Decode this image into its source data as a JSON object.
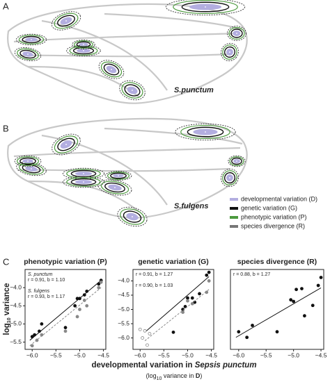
{
  "panels": {
    "a": "A",
    "b": "B",
    "c": "C"
  },
  "species": {
    "a": "S.punctum",
    "b": "S.fulgens"
  },
  "legend": [
    {
      "label": "developmental variation (D)",
      "color": "#b3aee0"
    },
    {
      "label": "genetic variation (G)",
      "color": "#111111"
    },
    {
      "label": "phenotypic variation (P)",
      "color": "#4c9a3e"
    },
    {
      "label": "species divergence (R)",
      "color": "#777777"
    }
  ],
  "y_label": [
    "log",
    "10",
    " variance"
  ],
  "x_label": [
    "developmental variation in ",
    "Sepsis punctum"
  ],
  "x_label_sub": [
    "(log",
    "10",
    " variance in ",
    "D",
    ")"
  ],
  "chart_data": [
    {
      "type": "scatter",
      "title": "phenotypic variation (P)",
      "xlim": [
        -6.15,
        -4.45
      ],
      "ylim": [
        -5.7,
        -3.5
      ],
      "xticks": [
        {
          "value": -6,
          "label": "−6.0"
        },
        {
          "value": -5.5,
          "label": "−5.5"
        },
        {
          "value": -5,
          "label": "−5.0"
        },
        {
          "value": -4.5,
          "label": "−4.5"
        }
      ],
      "yticks": [
        {
          "value": -5.5,
          "label": "−5.5"
        },
        {
          "value": -5,
          "label": "−5.0"
        },
        {
          "value": -4.5,
          "label": "−4.5"
        },
        {
          "value": -4,
          "label": "−4.0"
        }
      ],
      "annotations": [
        "r = 0.91, b = 1.10",
        "r = 0.93, b = 1.17"
      ],
      "series": [
        {
          "name": "S. punctum",
          "color": "#111111",
          "filled": true,
          "dash": false,
          "x": [
            -6.0,
            -5.95,
            -5.85,
            -5.8,
            -5.3,
            -5.1,
            -5.05,
            -5.0,
            -4.9,
            -4.85,
            -4.6,
            -4.55
          ],
          "values": [
            -5.35,
            -5.3,
            -5.2,
            -5.0,
            -5.1,
            -4.5,
            -4.3,
            -4.3,
            -4.2,
            -4.1,
            -3.9,
            -3.8
          ],
          "fit": {
            "x": [
              -6.05,
              -4.55
            ],
            "values": [
              -5.45,
              -3.8
            ]
          }
        },
        {
          "name": "S. fulgens",
          "color": "#888888",
          "filled": true,
          "dash": true,
          "x": [
            -6.0,
            -5.9,
            -5.8,
            -5.3,
            -5.05,
            -5.0,
            -4.9,
            -4.85,
            -4.6,
            -4.55
          ],
          "values": [
            -5.6,
            -5.45,
            -5.3,
            -5.2,
            -4.8,
            -4.6,
            -4.35,
            -4.5,
            -4.0,
            -3.85
          ],
          "fit": {
            "x": [
              -6.05,
              -4.55
            ],
            "values": [
              -5.6,
              -4.0
            ]
          }
        }
      ]
    },
    {
      "type": "scatter",
      "title": "genetic variation (G)",
      "xlim": [
        -6.15,
        -4.45
      ],
      "ylim": [
        -6.4,
        -3.6
      ],
      "xticks": [
        {
          "value": -6,
          "label": "−6.0"
        },
        {
          "value": -5.5,
          "label": "−5.5"
        },
        {
          "value": -5,
          "label": "−5.0"
        },
        {
          "value": -4.5,
          "label": "−4.5"
        }
      ],
      "yticks": [
        {
          "value": -6,
          "label": "−6.0"
        },
        {
          "value": -5.5,
          "label": "−5.5"
        },
        {
          "value": -5,
          "label": "−5.0"
        },
        {
          "value": -4.5,
          "label": "−4.5"
        },
        {
          "value": -4,
          "label": "−4.0"
        }
      ],
      "annotations": [
        "r = 0.91, b = 1.27",
        "r = 0.90, b = 1.03"
      ],
      "series": [
        {
          "color": "#111111",
          "filled": true,
          "dash": false,
          "x": [
            -5.3,
            -5.1,
            -5.05,
            -5.0,
            -4.9,
            -4.85,
            -4.75,
            -4.6,
            -4.55
          ],
          "values": [
            -5.8,
            -5.0,
            -4.9,
            -4.6,
            -4.6,
            -4.75,
            -4.45,
            -3.8,
            -3.7
          ],
          "fit": {
            "x": [
              -5.9,
              -4.55
            ],
            "values": [
              -5.8,
              -3.85
            ]
          }
        },
        {
          "color": "#888888",
          "filled": true,
          "dash": true,
          "x": [
            -5.1,
            -5.0,
            -4.9,
            -4.6,
            -4.55
          ],
          "values": [
            -5.1,
            -4.7,
            -4.8,
            -4.4,
            -4.0
          ],
          "fit": {
            "x": [
              -5.9,
              -4.55
            ],
            "values": [
              -6.1,
              -4.3
            ]
          }
        },
        {
          "color": "#888888",
          "filled": false,
          "dash": false,
          "x": [
            -6.0,
            -5.95,
            -5.9,
            -5.85,
            -5.8
          ],
          "values": [
            -5.7,
            -6.0,
            -5.75,
            -6.25,
            -5.85
          ]
        }
      ]
    },
    {
      "type": "scatter",
      "title": "species divergence (R)",
      "xlim": [
        -6.15,
        -4.45
      ],
      "ylim": [
        0,
        10
      ],
      "xticks": [
        {
          "value": -6,
          "label": "−6.0"
        },
        {
          "value": -5.5,
          "label": "−5.5"
        },
        {
          "value": -5,
          "label": "−5.0"
        },
        {
          "value": -4.5,
          "label": "−4.5"
        }
      ],
      "annotations": [
        "r = 0.88, b = 1.27"
      ],
      "series": [
        {
          "color": "#111111",
          "filled": true,
          "dash": false,
          "x": [
            -6.0,
            -5.85,
            -5.75,
            -5.3,
            -5.05,
            -5.0,
            -4.95,
            -4.85,
            -4.8,
            -4.65,
            -4.55,
            -4.5
          ],
          "values": [
            2.2,
            1.5,
            3.0,
            2.2,
            6.2,
            6.0,
            7.5,
            7.6,
            4.2,
            5.5,
            8.0,
            9.0
          ],
          "fit": {
            "x": [
              -6.05,
              -4.5
            ],
            "values": [
              1.5,
              7.7
            ]
          }
        }
      ]
    }
  ]
}
